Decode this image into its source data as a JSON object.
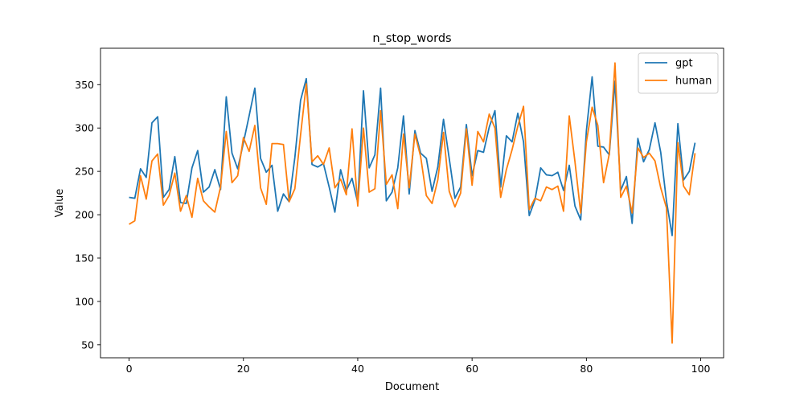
{
  "chart_data": {
    "type": "line",
    "title": "n_stop_words",
    "xlabel": "Document",
    "ylabel": "Value",
    "xlim": [
      -5,
      104
    ],
    "ylim": [
      35,
      392
    ],
    "xticks": [
      0,
      20,
      40,
      60,
      80,
      100
    ],
    "yticks": [
      50,
      100,
      150,
      200,
      250,
      300,
      350
    ],
    "grid": false,
    "legend_position": "top-right",
    "x": [
      0,
      1,
      2,
      3,
      4,
      5,
      6,
      7,
      8,
      9,
      10,
      11,
      12,
      13,
      14,
      15,
      16,
      17,
      18,
      19,
      20,
      21,
      22,
      23,
      24,
      25,
      26,
      27,
      28,
      29,
      30,
      31,
      32,
      33,
      34,
      35,
      36,
      37,
      38,
      39,
      40,
      41,
      42,
      43,
      44,
      45,
      46,
      47,
      48,
      49,
      50,
      51,
      52,
      53,
      54,
      55,
      56,
      57,
      58,
      59,
      60,
      61,
      62,
      63,
      64,
      65,
      66,
      67,
      68,
      69,
      70,
      71,
      72,
      73,
      74,
      75,
      76,
      77,
      78,
      79,
      80,
      81,
      82,
      83,
      84,
      85,
      86,
      87,
      88,
      89,
      90,
      91,
      92,
      93,
      94,
      95,
      96,
      97,
      98,
      99
    ],
    "series": [
      {
        "name": "gpt",
        "color": "#1f77b4",
        "values": [
          220,
          219,
          253,
          243,
          306,
          313,
          220,
          229,
          267,
          214,
          213,
          254,
          274,
          226,
          232,
          252,
          229,
          336,
          271,
          253,
          283,
          314,
          346,
          265,
          249,
          257,
          204,
          224,
          215,
          266,
          332,
          357,
          258,
          255,
          259,
          232,
          203,
          252,
          228,
          242,
          214,
          343,
          254,
          269,
          346,
          216,
          226,
          254,
          314,
          224,
          297,
          271,
          265,
          227,
          255,
          310,
          265,
          219,
          232,
          304,
          245,
          274,
          272,
          301,
          320,
          232,
          291,
          284,
          317,
          284,
          199,
          217,
          254,
          246,
          245,
          249,
          228,
          257,
          210,
          194,
          297,
          359,
          279,
          278,
          269,
          354,
          228,
          244,
          190,
          288,
          261,
          275,
          306,
          272,
          216,
          176,
          305,
          240,
          250,
          283
        ]
      },
      {
        "name": "human",
        "color": "#ff7f0e",
        "values": [
          189,
          193,
          245,
          218,
          262,
          270,
          211,
          222,
          248,
          204,
          222,
          197,
          242,
          216,
          209,
          203,
          232,
          296,
          237,
          245,
          289,
          273,
          303,
          231,
          212,
          282,
          282,
          281,
          215,
          230,
          292,
          351,
          261,
          268,
          258,
          277,
          231,
          241,
          223,
          299,
          210,
          300,
          226,
          230,
          320,
          235,
          246,
          207,
          293,
          231,
          293,
          267,
          222,
          213,
          240,
          295,
          227,
          209,
          225,
          299,
          234,
          296,
          284,
          316,
          300,
          220,
          252,
          275,
          302,
          325,
          206,
          219,
          216,
          232,
          229,
          233,
          204,
          314,
          261,
          202,
          284,
          324,
          303,
          237,
          270,
          375,
          220,
          233,
          202,
          277,
          266,
          271,
          262,
          231,
          208,
          52,
          283,
          233,
          223,
          271
        ]
      }
    ]
  }
}
